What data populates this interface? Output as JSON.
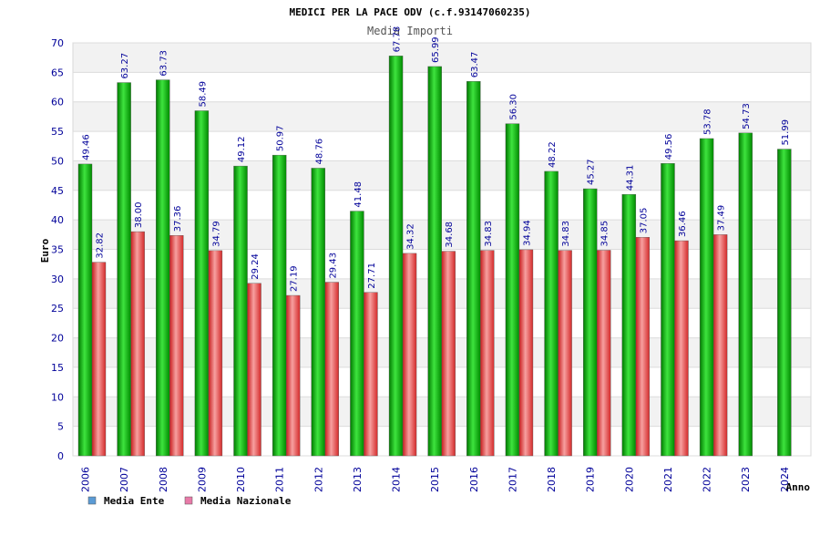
{
  "chart_data": {
    "type": "bar",
    "title": "MEDICI PER LA PACE ODV (c.f.93147060235)",
    "subtitle": "Media Importi",
    "xlabel": "Anno",
    "ylabel": "Euro",
    "ylim": [
      0,
      70
    ],
    "yticks": [
      0,
      5,
      10,
      15,
      20,
      25,
      30,
      35,
      40,
      45,
      50,
      55,
      60,
      65,
      70
    ],
    "grid": true,
    "legend_position": "bottom-left",
    "categories": [
      "2006",
      "2007",
      "2008",
      "2009",
      "2010",
      "2011",
      "2012",
      "2013",
      "2014",
      "2015",
      "2016",
      "2017",
      "2018",
      "2019",
      "2020",
      "2021",
      "2022",
      "2023",
      "2024"
    ],
    "series": [
      {
        "name": "Media Ente",
        "legend_color": "#5b9bd5",
        "bar_color": "#00b000",
        "values": [
          49.46,
          63.27,
          63.73,
          58.49,
          49.12,
          50.97,
          48.76,
          41.48,
          67.78,
          65.99,
          63.47,
          56.3,
          48.22,
          45.27,
          44.31,
          49.56,
          53.78,
          54.73,
          51.99
        ],
        "labels": [
          "49.46",
          "63.27",
          "63.73",
          "58.49",
          "49.12",
          "50.97",
          "48.76",
          "41.48",
          "67.78",
          "65.99",
          "63.47",
          "56.30",
          "48.22",
          "45.27",
          "44.31",
          "49.56",
          "53.78",
          "54.73",
          "51.99"
        ]
      },
      {
        "name": "Media Nazionale",
        "legend_color": "#e87aa8",
        "bar_color": "#e83a3a",
        "values": [
          32.82,
          38.0,
          37.36,
          34.79,
          29.24,
          27.19,
          29.43,
          27.71,
          34.32,
          34.68,
          34.83,
          34.94,
          34.83,
          34.85,
          37.05,
          36.46,
          37.49,
          null,
          null
        ],
        "labels": [
          "32.82",
          "38.00",
          "37.36",
          "34.79",
          "29.24",
          "27.19",
          "29.43",
          "27.71",
          "34.32",
          "34.68",
          "34.83",
          "34.94",
          "34.83",
          "34.85",
          "37.05",
          "36.46",
          "37.49",
          null,
          null
        ]
      }
    ]
  }
}
